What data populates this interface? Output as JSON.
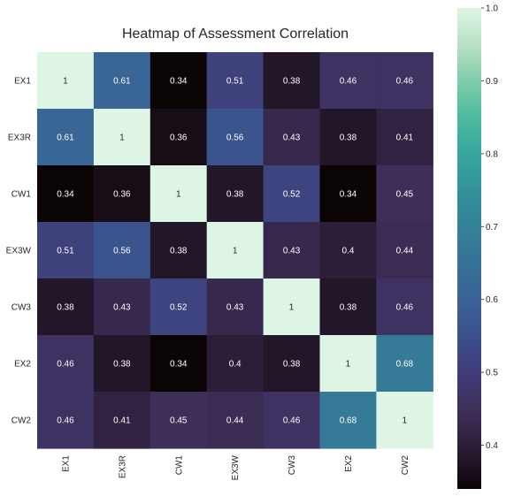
{
  "chart_data": {
    "type": "heatmap",
    "title": "Heatmap of Assessment Correlation",
    "xlabel": "",
    "ylabel": "",
    "x_categories": [
      "EX1",
      "EX3R",
      "CW1",
      "EX3W",
      "CW3",
      "EX2",
      "CW2"
    ],
    "y_categories": [
      "EX1",
      "EX3R",
      "CW1",
      "EX3W",
      "CW3",
      "EX2",
      "CW2"
    ],
    "values": [
      [
        1,
        0.61,
        0.34,
        0.51,
        0.38,
        0.46,
        0.46
      ],
      [
        0.61,
        1,
        0.36,
        0.56,
        0.43,
        0.38,
        0.41
      ],
      [
        0.34,
        0.36,
        1,
        0.38,
        0.52,
        0.34,
        0.45
      ],
      [
        0.51,
        0.56,
        0.38,
        1,
        0.43,
        0.4,
        0.44
      ],
      [
        0.38,
        0.43,
        0.52,
        0.43,
        1,
        0.38,
        0.46
      ],
      [
        0.46,
        0.38,
        0.34,
        0.4,
        0.38,
        1,
        0.68
      ],
      [
        0.46,
        0.41,
        0.45,
        0.44,
        0.46,
        0.68,
        1
      ]
    ],
    "colorbar": {
      "min": 0.34,
      "max": 1,
      "ticks": [
        0.4,
        0.5,
        0.6,
        0.7,
        0.8,
        0.9,
        1.0
      ],
      "tick_labels": [
        "0.4",
        "0.5",
        "0.6",
        "0.7",
        "0.8",
        "0.9",
        "1.0"
      ],
      "colormap": "mako",
      "color_stops": [
        "#0b0405",
        "#281b33",
        "#3c2d55",
        "#403a75",
        "#3c4d8a",
        "#3a6196",
        "#367097",
        "#348098",
        "#33909a",
        "#36a59d",
        "#4bba9e",
        "#7ecdaa",
        "#b7e1c4",
        "#def5e5"
      ]
    },
    "annotation_colors": {
      "dark_bg_text": "#ffffff",
      "light_bg_text": "#262626"
    },
    "grid": false,
    "legend": "colorbar-right"
  }
}
